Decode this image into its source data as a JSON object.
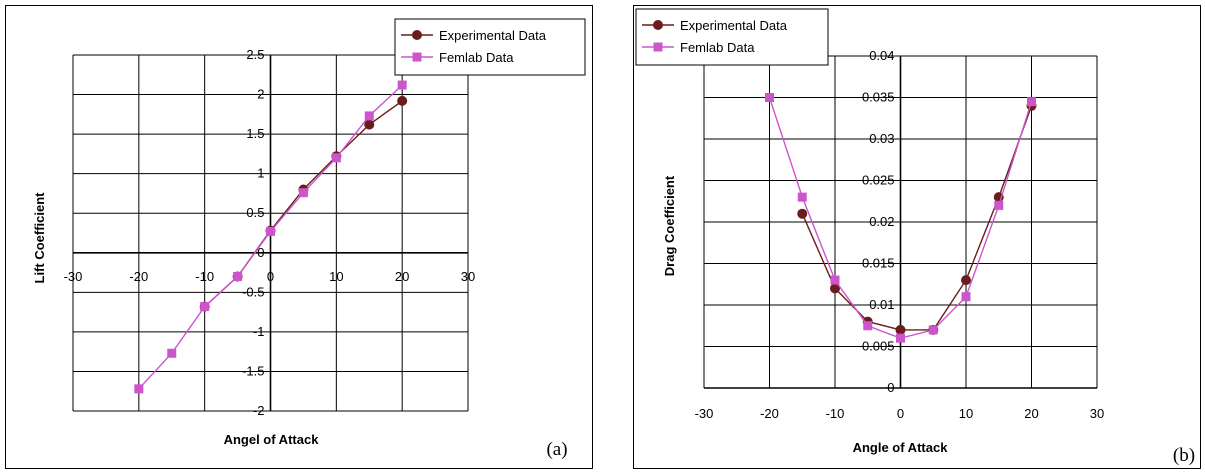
{
  "chart_data": [
    {
      "type": "line",
      "panel_label": "(a)",
      "xlabel": "Angel of Attack",
      "ylabel": "Lift Coefficient",
      "xlim": [
        -30,
        30
      ],
      "ylim": [
        -2,
        2.5
      ],
      "x_ticks": [
        "-30",
        "-20",
        "-10",
        "0",
        "10",
        "20",
        "30"
      ],
      "y_ticks": [
        "-2",
        "-1.5",
        "-1",
        "-0.5",
        "0",
        "0.5",
        "1",
        "1.5",
        "2",
        "2.5"
      ],
      "grid": true,
      "legend_position": "top-right",
      "series": [
        {
          "name": "Experimental Data",
          "color": "#6b1c1c",
          "marker": "circle",
          "x": [
            -10,
            -5,
            0,
            5,
            10,
            15,
            20
          ],
          "y": [
            -0.68,
            -0.3,
            0.28,
            0.8,
            1.22,
            1.62,
            1.92
          ]
        },
        {
          "name": "Femlab Data",
          "color": "#cc55cc",
          "marker": "square",
          "x": [
            -20,
            -15,
            -10,
            -5,
            0,
            5,
            10,
            15,
            20
          ],
          "y": [
            -1.72,
            -1.27,
            -0.68,
            -0.3,
            0.27,
            0.76,
            1.2,
            1.73,
            2.12
          ]
        }
      ]
    },
    {
      "type": "line",
      "panel_label": "(b)",
      "xlabel": "Angle of Attack",
      "ylabel": "Drag Coefficient",
      "xlim": [
        -30,
        30
      ],
      "ylim": [
        0,
        0.04
      ],
      "x_ticks": [
        "-30",
        "-20",
        "-10",
        "0",
        "10",
        "20",
        "30"
      ],
      "y_ticks": [
        "0",
        "0.005",
        "0.01",
        "0.015",
        "0.02",
        "0.025",
        "0.03",
        "0.035",
        "0.04"
      ],
      "grid": true,
      "legend_position": "top-left",
      "series": [
        {
          "name": "Experimental Data",
          "color": "#6b1c1c",
          "marker": "circle",
          "x": [
            -15,
            -10,
            -5,
            0,
            5,
            10,
            15,
            20
          ],
          "y": [
            0.021,
            0.012,
            0.008,
            0.007,
            0.007,
            0.013,
            0.023,
            0.034
          ]
        },
        {
          "name": "Femlab Data",
          "color": "#cc55cc",
          "marker": "square",
          "x": [
            -20,
            -15,
            -10,
            -5,
            0,
            5,
            10,
            15,
            20
          ],
          "y": [
            0.035,
            0.023,
            0.013,
            0.0075,
            0.006,
            0.007,
            0.011,
            0.022,
            0.0345
          ]
        }
      ]
    }
  ]
}
